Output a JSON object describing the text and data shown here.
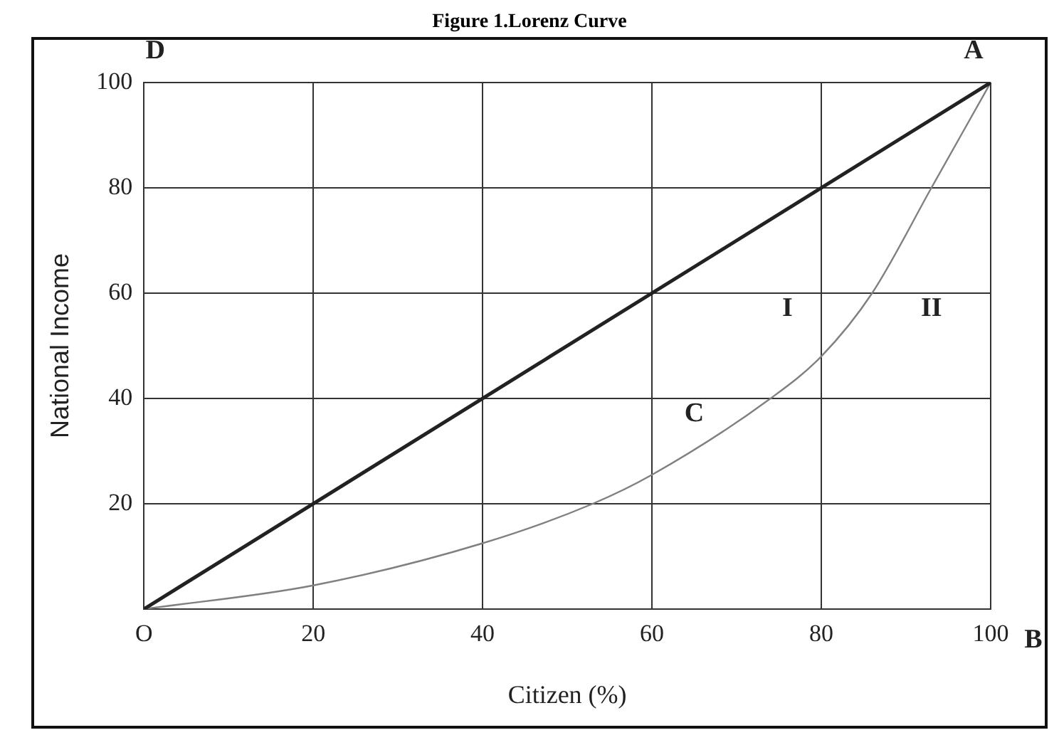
{
  "chart_data": {
    "type": "line",
    "title": "Figure 1.Lorenz Curve",
    "xlabel": "Citizen (%)",
    "ylabel": "National Income",
    "series": [
      {
        "color": "#222222",
        "x": [
          0,
          100
        ],
        "values": [
          0,
          100
        ]
      },
      {
        "color": "#808080",
        "x": [
          0,
          20,
          40,
          53,
          60,
          74,
          80,
          86,
          93,
          100
        ],
        "values": [
          0,
          4.5,
          12.5,
          20,
          25.5,
          40,
          48,
          60,
          80,
          100
        ]
      }
    ],
    "xlim": [
      0,
      100
    ],
    "ylim": [
      0,
      100
    ],
    "xticks": [
      {
        "value": 0,
        "label": "O"
      },
      20,
      40,
      60,
      80,
      100
    ],
    "yticks": [
      {
        "value": 0,
        "label": null
      },
      20,
      40,
      60,
      80,
      100
    ],
    "annotations": [
      "D",
      "A",
      "B",
      "C",
      "I",
      "II"
    ],
    "grid": true,
    "legend": false,
    "marker": "none",
    "line_style": "solid"
  }
}
